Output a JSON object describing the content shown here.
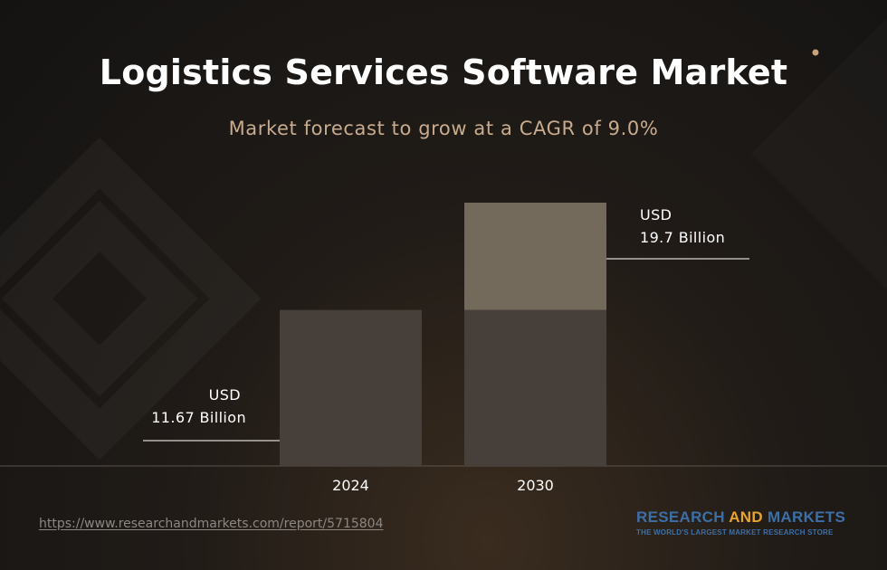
{
  "header": {
    "title": "Logistics Services Software Market",
    "subtitle": "Market forecast to grow at a CAGR of 9.0%"
  },
  "footer": {
    "url": "https://www.researchandmarkets.com/report/5715804",
    "brand_name_part1": "RESEARCH ",
    "brand_name_part2": "AND",
    "brand_name_part3": " MARKETS",
    "brand_tagline": "THE WORLD'S LARGEST MARKET RESEARCH STORE"
  },
  "colors": {
    "bar": "#47403a",
    "growth": "#736a5c",
    "title": "#ffffff",
    "subtitle": "#c9ab8e",
    "brand_blue": "#3c6fa8",
    "brand_orange": "#e8a42a"
  },
  "chart_data": {
    "type": "bar",
    "title": "Logistics Services Software Market",
    "subtitle": "Market forecast to grow at a CAGR of 9.0%",
    "categories": [
      "2024",
      "2030"
    ],
    "values": [
      11.67,
      19.7
    ],
    "unit": "USD Billion",
    "data_labels": [
      {
        "line1": "USD",
        "line2": "11.67 Billion"
      },
      {
        "line1": "USD",
        "line2": "19.7 Billion"
      }
    ],
    "ylim": [
      0,
      19.7
    ],
    "grid": false,
    "legend": "none"
  }
}
